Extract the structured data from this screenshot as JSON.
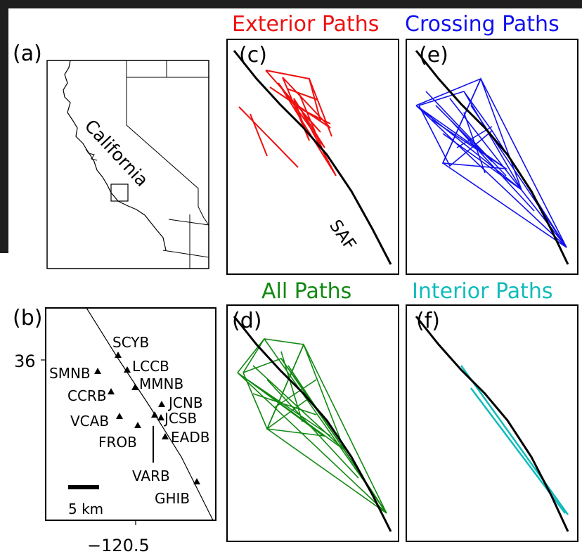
{
  "panels": {
    "a": {
      "label": "(a)",
      "state_label": "California"
    },
    "b": {
      "label": "(b)",
      "lat_tick": "36",
      "lon_tick": "−120.5",
      "scale_label": "5 km",
      "stations": [
        "SCYB",
        "LCCB",
        "SMNB",
        "MMNB",
        "CCRB",
        "JCNB",
        "VCAB",
        "JCSB",
        "FROB",
        "EADB",
        "VARB",
        "GHIB"
      ]
    },
    "c": {
      "label": "(c)",
      "title": "Exterior Paths",
      "fault_label": "SAF"
    },
    "d": {
      "label": "(d)",
      "title": "All Paths"
    },
    "e": {
      "label": "(e)",
      "title": "Crossing Paths"
    },
    "f": {
      "label": "(f)",
      "title": "Interior Paths"
    }
  },
  "colors": {
    "exterior": "#ee1111",
    "crossing": "#1111ee",
    "all": "#118811",
    "interior": "#11bbbb",
    "fault": "#000000"
  }
}
